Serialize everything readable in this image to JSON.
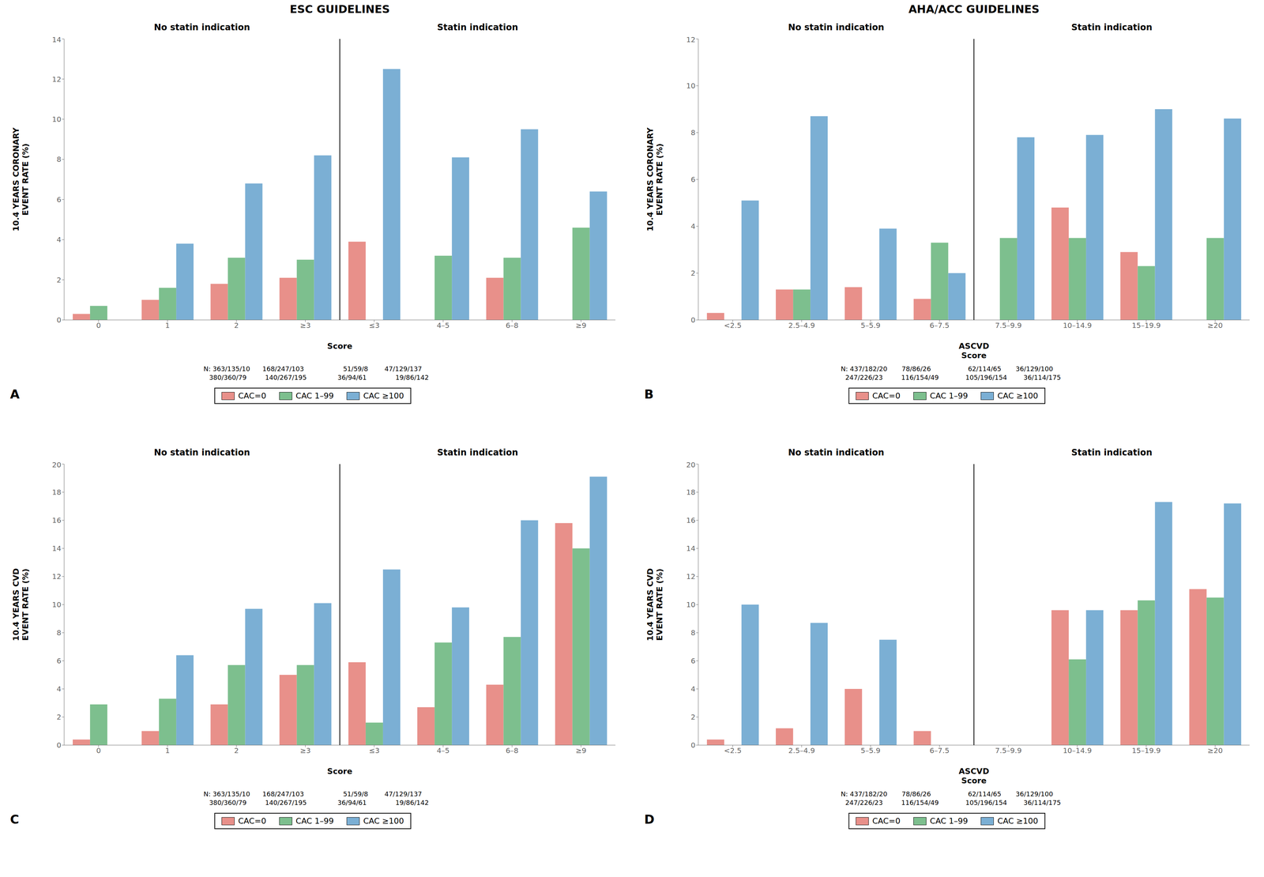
{
  "chart_data": [
    {
      "type": "bar",
      "title": "ESC GUIDELINES",
      "subtitle": [
        "No statin indication",
        "Statin indication"
      ],
      "ylabel": "10.4 YEARS CORONARY\nEVENT RATE (%)",
      "xlabel": "Score",
      "categories": [
        "0",
        "1",
        "2",
        "≥3",
        "≤3",
        "4–5",
        "6–8",
        "≥9"
      ],
      "series": [
        {
          "name": "CAC=0",
          "color": "#E8908A",
          "values": [
            0.3,
            1.0,
            1.8,
            2.1,
            3.9,
            0.0,
            2.1,
            0.0
          ]
        },
        {
          "name": "CAC 1–99",
          "color": "#7DBF8E",
          "values": [
            0.7,
            1.6,
            3.1,
            3.0,
            0.0,
            3.2,
            3.1,
            4.6
          ]
        },
        {
          "name": "CAC ≥100",
          "color": "#7BAFD4",
          "values": [
            0.0,
            3.8,
            6.8,
            8.2,
            12.5,
            8.1,
            9.5,
            6.4
          ]
        }
      ],
      "ylim": [
        0,
        14
      ],
      "yticks": [
        0,
        2,
        4,
        6,
        8,
        10,
        12,
        14
      ],
      "grid": false,
      "legend": "bottom",
      "annotations": [
        "N: 363/135/10      168/247/103                   51/59/8        47/129/137",
        "      380/360/79         140/267/195               36/94/61              19/86/142",
        "A"
      ]
    },
    {
      "type": "bar",
      "title": "AHA/ACC GUIDELINES",
      "subtitle": [
        "No statin indication",
        "Statin indication"
      ],
      "ylabel": "10.4 YEARS CORONARY\nEVENT RATE (%)",
      "xlabel": "ASCVD\nScore",
      "categories": [
        "<2.5",
        "2.5–4.9",
        "5–5.9",
        "6–7.5",
        "7.5–9.9",
        "10–14.9",
        "15–19.9",
        "≥20"
      ],
      "series": [
        {
          "name": "CAC=0",
          "color": "#E8908A",
          "values": [
            0.3,
            1.3,
            1.4,
            0.9,
            0.0,
            4.8,
            2.9,
            0.0
          ]
        },
        {
          "name": "CAC 1–99",
          "color": "#7DBF8E",
          "values": [
            0.0,
            1.3,
            0.0,
            3.3,
            3.5,
            3.5,
            2.3,
            3.5
          ]
        },
        {
          "name": "CAC ≥100",
          "color": "#7BAFD4",
          "values": [
            5.1,
            8.7,
            3.9,
            2.0,
            7.8,
            7.9,
            9.0,
            8.6
          ]
        }
      ],
      "ylim": [
        0,
        12
      ],
      "yticks": [
        0,
        2,
        4,
        6,
        8,
        10,
        12
      ],
      "grid": false,
      "legend": "bottom",
      "annotations": [
        "N: 437/182/20       78/86/26                  62/114/65       36/129/100",
        "      247/226/23         116/154/49             105/196/154        36/114/175",
        "B"
      ]
    },
    {
      "type": "bar",
      "subtitle": [
        "No statin indication",
        "Statin indication"
      ],
      "ylabel": "10.4 YEARS CVD\nEVENT RATE (%)",
      "xlabel": "Score",
      "categories": [
        "0",
        "1",
        "2",
        "≥3",
        "≤3",
        "4–5",
        "6–8",
        "≥9"
      ],
      "series": [
        {
          "name": "CAC=0",
          "color": "#E8908A",
          "values": [
            0.4,
            1.0,
            2.9,
            5.0,
            5.9,
            2.7,
            4.3,
            15.8
          ]
        },
        {
          "name": "CAC 1–99",
          "color": "#7DBF8E",
          "values": [
            2.9,
            3.3,
            5.7,
            5.7,
            1.6,
            7.3,
            7.7,
            14.0
          ]
        },
        {
          "name": "CAC ≥100",
          "color": "#7BAFD4",
          "values": [
            0.0,
            6.4,
            9.7,
            10.1,
            12.5,
            9.8,
            16.0,
            19.1
          ]
        }
      ],
      "ylim": [
        0,
        20
      ],
      "yticks": [
        0,
        2,
        4,
        6,
        8,
        10,
        12,
        14,
        16,
        18,
        20
      ],
      "grid": false,
      "legend": "bottom",
      "annotations": [
        "N: 363/135/10      168/247/103                   51/59/8        47/129/137",
        "      380/360/79         140/267/195               36/94/61              19/86/142",
        "C"
      ]
    },
    {
      "type": "bar",
      "subtitle": [
        "No statin indication",
        "Statin indication"
      ],
      "ylabel": "10.4 YEARS CVD\nEVENT RATE (%)",
      "xlabel": "ASCVD\nScore",
      "categories": [
        "<2.5",
        "2.5–4.9",
        "5–5.9",
        "6–7.5",
        "7.5–9.9",
        "10–14.9",
        "15–19.9",
        "≥20"
      ],
      "series": [
        {
          "name": "CAC=0",
          "color": "#E8908A",
          "values": [
            0.4,
            1.2,
            4.0,
            1.0,
            0.0,
            9.6,
            9.6,
            11.1
          ]
        },
        {
          "name": "CAC 1–99",
          "color": "#7DBF8E",
          "values": [
            0.0,
            0.0,
            0.0,
            0.0,
            0.0,
            6.1,
            10.3,
            10.5
          ]
        },
        {
          "name": "CAC ≥100",
          "color": "#7BAFD4",
          "values": [
            10.0,
            8.7,
            7.5,
            0.0,
            0.0,
            9.6,
            17.3,
            17.2
          ]
        }
      ],
      "ylim": [
        0,
        20
      ],
      "yticks": [
        0,
        2,
        4,
        6,
        8,
        10,
        12,
        14,
        16,
        18,
        20
      ],
      "grid": false,
      "legend": "bottom",
      "annotations": [
        "N: 437/182/20       78/86/26                  62/114/65       36/129/100",
        "      247/226/23         116/154/49             105/196/154        36/114/175",
        "D"
      ]
    }
  ]
}
